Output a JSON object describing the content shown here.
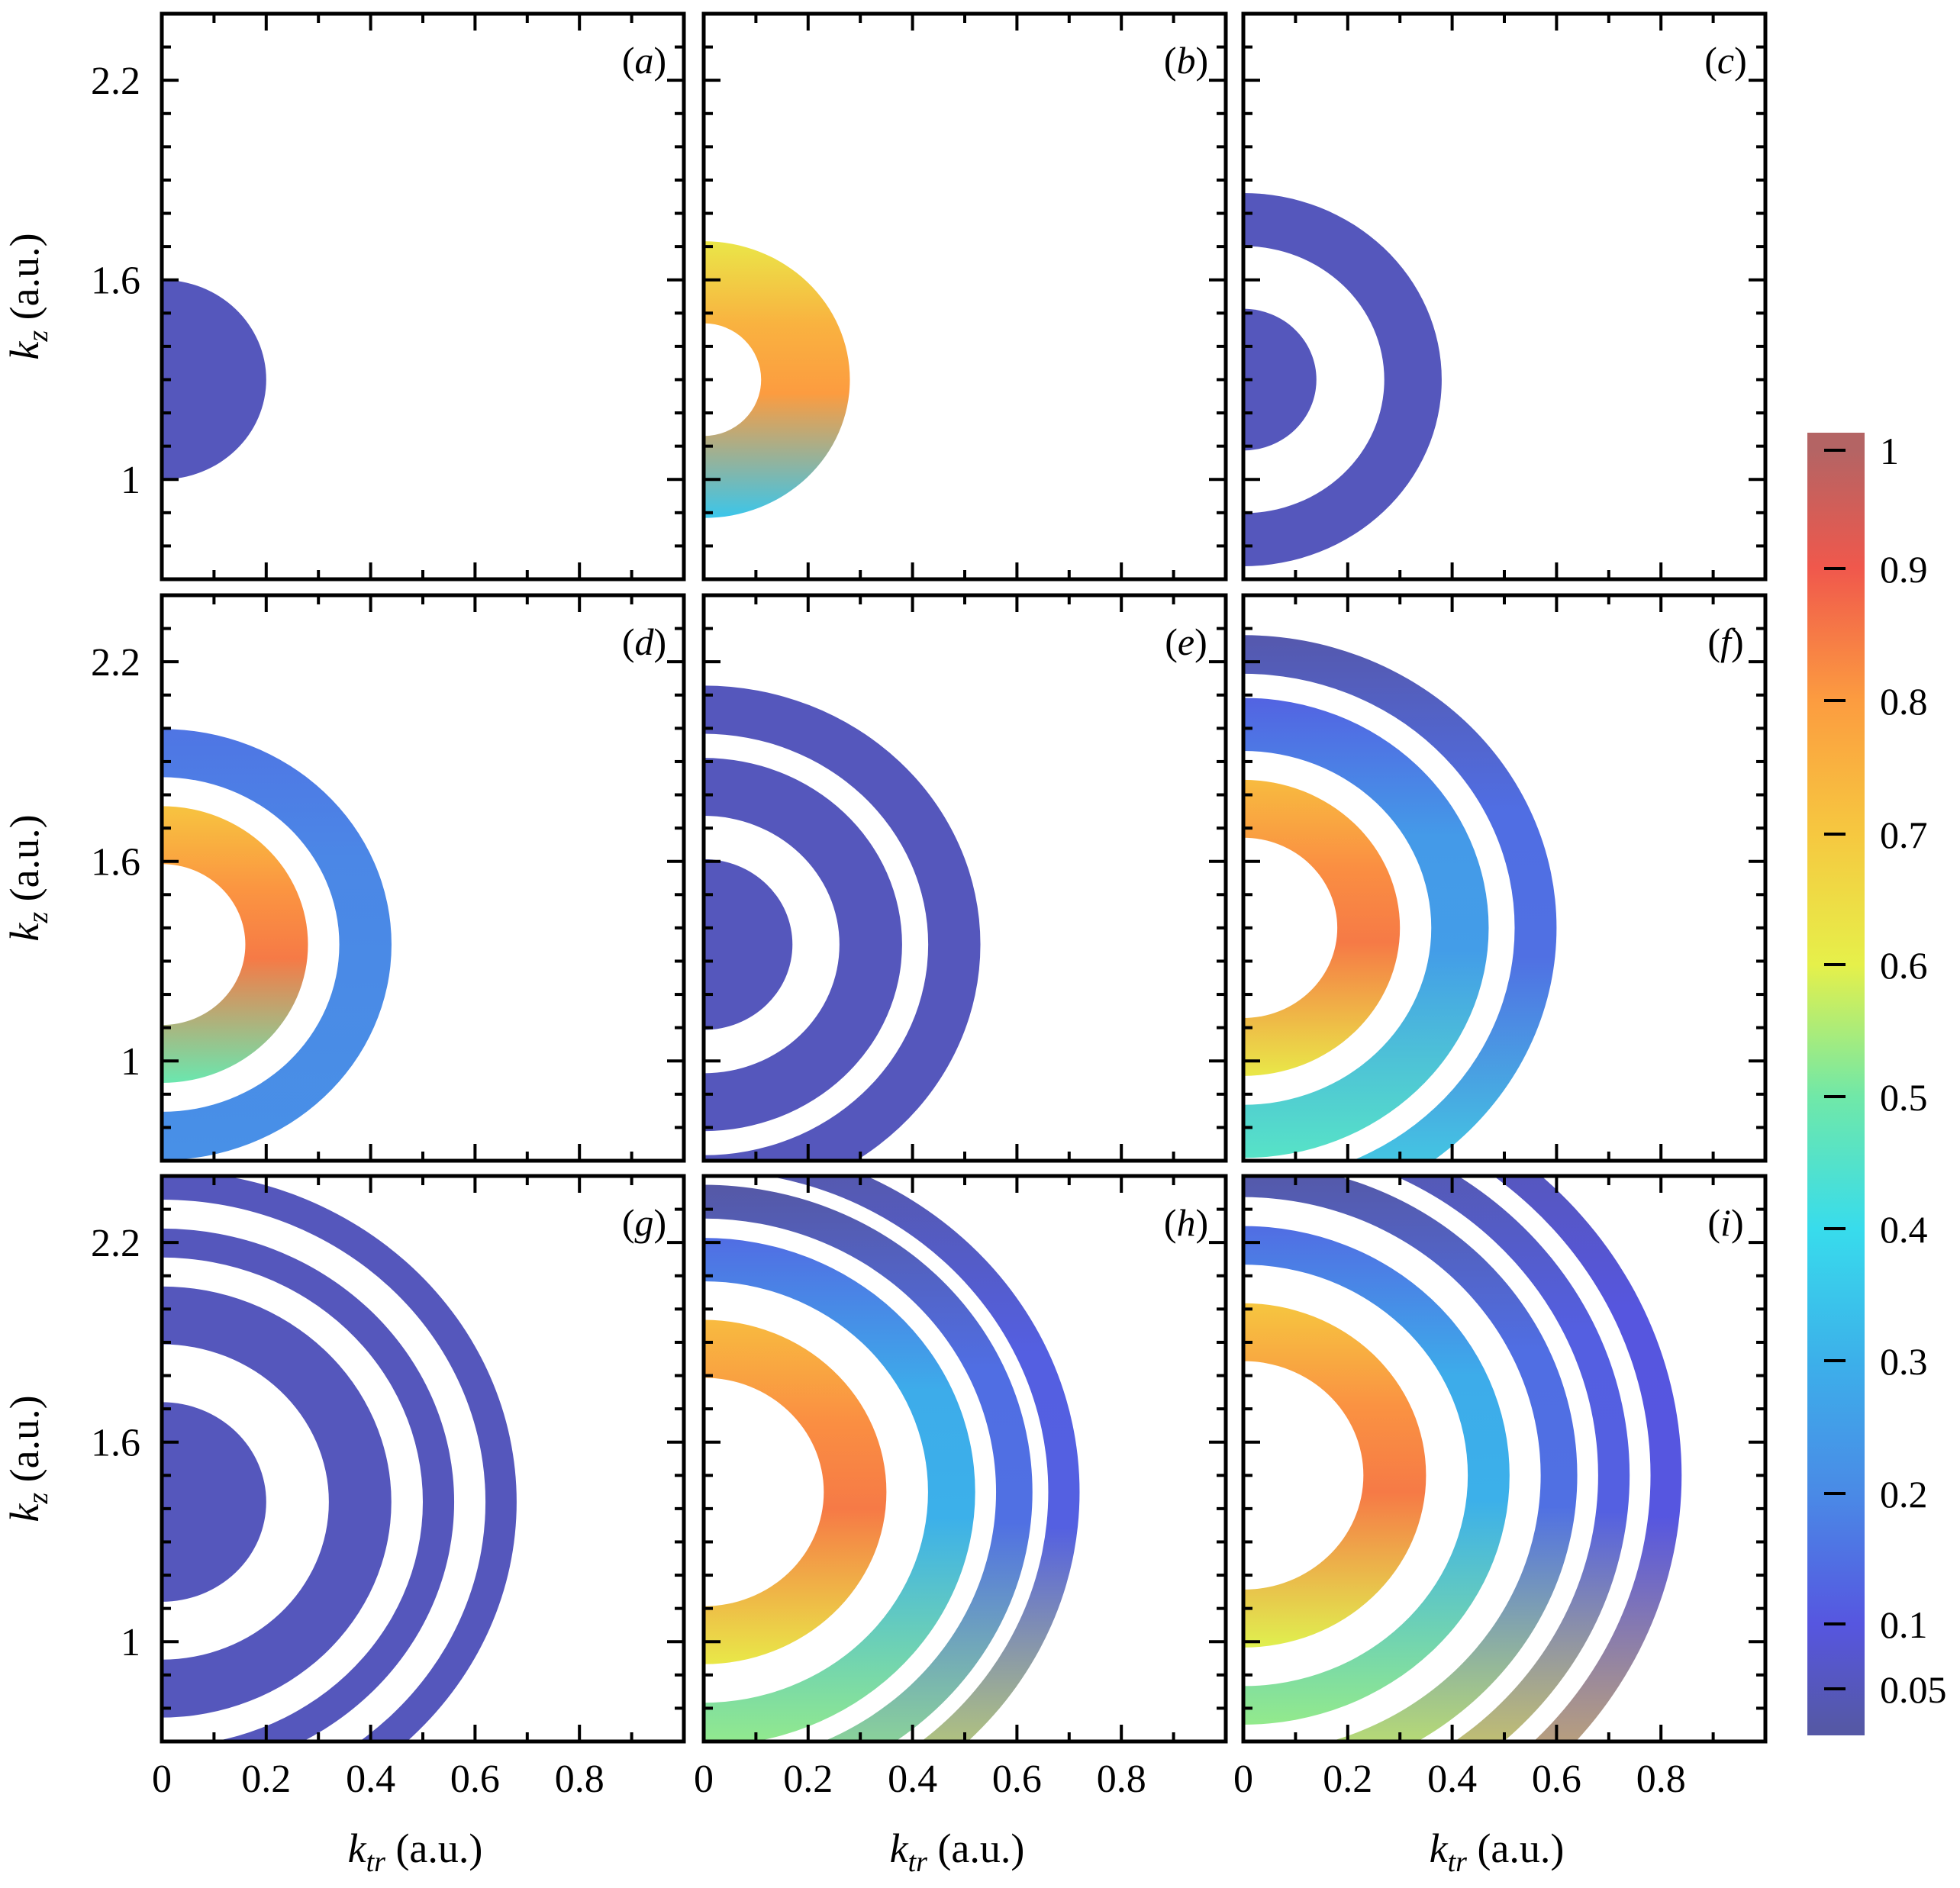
{
  "chart_data": {
    "type": "heatmap",
    "description_units": "rings are momentum-space density bands, color = normalized intensity",
    "xlabel": "k_tr (a.u.)",
    "xlabel_parts": {
      "sym": "k",
      "sub": "tr",
      "unit": " (a.u.)"
    },
    "ylabel": "k_z (a.u.)",
    "ylabel_parts": {
      "sym": "k",
      "sub": "z",
      "unit": " (a.u.)"
    },
    "xlim": [
      0,
      1.0
    ],
    "ylim": [
      0.7,
      2.4
    ],
    "xticks_major": [
      0,
      0.2,
      0.4,
      0.6,
      0.8
    ],
    "xtick_labels": [
      "0",
      "0.2",
      "0.4",
      "0.6",
      "0.8"
    ],
    "xticks_minor": [
      0.1,
      0.3,
      0.5,
      0.7,
      0.9
    ],
    "yticks_major": [
      1.0,
      1.6,
      2.2
    ],
    "ytick_labels": [
      "1",
      "1.6",
      "2.2"
    ],
    "yticks_minor": [
      0.8,
      0.9,
      1.1,
      1.2,
      1.3,
      1.4,
      1.5,
      1.7,
      1.8,
      1.9,
      2.0,
      2.1,
      2.3
    ],
    "colorbar": {
      "range": [
        0.02,
        1.0
      ],
      "ticks": [
        1,
        0.9,
        0.8,
        0.7,
        0.6,
        0.5,
        0.4,
        0.3,
        0.2,
        0.1,
        0.05
      ],
      "tick_labels": [
        "1",
        "0.9",
        "0.8",
        "0.7",
        "0.6",
        "0.5",
        "0.4",
        "0.3",
        "0.2",
        "0.1",
        "0.05"
      ],
      "stops": [
        {
          "v": 0.02,
          "color": "#5558a6"
        },
        {
          "v": 0.1,
          "color": "#5656e0"
        },
        {
          "v": 0.2,
          "color": "#4a8ae6"
        },
        {
          "v": 0.3,
          "color": "#3cb0ea"
        },
        {
          "v": 0.4,
          "color": "#38dcec"
        },
        {
          "v": 0.5,
          "color": "#70e8a8"
        },
        {
          "v": 0.6,
          "color": "#e6f04a"
        },
        {
          "v": 0.7,
          "color": "#f6c840"
        },
        {
          "v": 0.8,
          "color": "#fc9c40"
        },
        {
          "v": 0.9,
          "color": "#f0584c"
        },
        {
          "v": 1.0,
          "color": "#b46464"
        }
      ]
    },
    "panels": [
      {
        "label": "a",
        "kz_center": 1.3,
        "rings": [
          {
            "ri": 0.0,
            "ro": 0.2,
            "width": 0.0,
            "vi": 0.05,
            "vo": 0.05,
            "vb": 0.0
          }
        ]
      },
      {
        "label": "b",
        "kz_center": 1.3,
        "rings": [
          {
            "ri": 0.11,
            "ro": 0.28,
            "width": 0.0,
            "vi": 0.8,
            "vo": 0.3,
            "vb": -0.25
          }
        ]
      },
      {
        "label": "c",
        "kz_center": 1.3,
        "rings": [
          {
            "ri": 0.0,
            "ro": 0.14,
            "width": 0.0,
            "vi": 0.05,
            "vo": 0.05,
            "vb": 0.0
          },
          {
            "ri": 0.27,
            "ro": 0.38,
            "width": 0.0,
            "vi": 0.05,
            "vo": 0.05,
            "vb": 0.0
          }
        ]
      },
      {
        "label": "d",
        "kz_center": 1.35,
        "rings": [
          {
            "ri": 0.16,
            "ro": 0.28,
            "width": 0.0,
            "vi": 0.85,
            "vo": 0.45,
            "vb": -0.2
          },
          {
            "ri": 0.34,
            "ro": 0.44,
            "width": 0.0,
            "vi": 0.2,
            "vo": 0.15,
            "vb": 0.05
          }
        ]
      },
      {
        "label": "e",
        "kz_center": 1.35,
        "rings": [
          {
            "ri": 0.0,
            "ro": 0.17,
            "width": 0.0,
            "vi": 0.05,
            "vo": 0.05,
            "vb": 0.0
          },
          {
            "ri": 0.26,
            "ro": 0.38,
            "width": 0.0,
            "vi": 0.05,
            "vo": 0.05,
            "vb": 0.0
          },
          {
            "ri": 0.43,
            "ro": 0.53,
            "width": 0.0,
            "vi": 0.05,
            "vo": 0.05,
            "vb": 0.0
          }
        ]
      },
      {
        "label": "f",
        "kz_center": 1.4,
        "rings": [
          {
            "ri": 0.18,
            "ro": 0.3,
            "width": 0.0,
            "vi": 0.85,
            "vo": 0.55,
            "vb": -0.1
          },
          {
            "ri": 0.36,
            "ro": 0.47,
            "width": 0.0,
            "vi": 0.25,
            "vo": 0.18,
            "vb": 0.3
          },
          {
            "ri": 0.52,
            "ro": 0.6,
            "width": 0.0,
            "vi": 0.15,
            "vo": 0.12,
            "vb": 0.35
          }
        ]
      },
      {
        "label": "g",
        "kz_center": 1.42,
        "rings": [
          {
            "ri": 0.0,
            "ro": 0.2,
            "width": 0.0,
            "vi": 0.05,
            "vo": 0.05,
            "vb": 0.0
          },
          {
            "ri": 0.32,
            "ro": 0.44,
            "width": 0.0,
            "vi": 0.05,
            "vo": 0.05,
            "vb": 0.0
          },
          {
            "ri": 0.5,
            "ro": 0.56,
            "width": 0.0,
            "vi": 0.05,
            "vo": 0.05,
            "vb": 0.0
          },
          {
            "ri": 0.62,
            "ro": 0.68,
            "width": 0.0,
            "vi": 0.05,
            "vo": 0.05,
            "vb": 0.0
          }
        ]
      },
      {
        "label": "h",
        "kz_center": 1.45,
        "rings": [
          {
            "ri": 0.23,
            "ro": 0.35,
            "width": 0.0,
            "vi": 0.85,
            "vo": 0.55,
            "vb": -0.1
          },
          {
            "ri": 0.43,
            "ro": 0.52,
            "width": 0.0,
            "vi": 0.3,
            "vo": 0.2,
            "vb": 0.35
          },
          {
            "ri": 0.56,
            "ro": 0.63,
            "width": 0.0,
            "vi": 0.15,
            "vo": 0.12,
            "vb": 0.5
          },
          {
            "ri": 0.66,
            "ro": 0.72,
            "width": 0.0,
            "vi": 0.12,
            "vo": 0.1,
            "vb": 0.6
          }
        ]
      },
      {
        "label": "i",
        "kz_center": 1.5,
        "rings": [
          {
            "ri": 0.23,
            "ro": 0.35,
            "width": 0.0,
            "vi": 0.85,
            "vo": 0.5,
            "vb": -0.1
          },
          {
            "ri": 0.43,
            "ro": 0.51,
            "width": 0.0,
            "vi": 0.3,
            "vo": 0.2,
            "vb": 0.35
          },
          {
            "ri": 0.57,
            "ro": 0.64,
            "width": 0.0,
            "vi": 0.15,
            "vo": 0.12,
            "vb": 0.55
          },
          {
            "ri": 0.68,
            "ro": 0.74,
            "width": 0.0,
            "vi": 0.12,
            "vo": 0.1,
            "vb": 0.65
          },
          {
            "ri": 0.78,
            "ro": 0.84,
            "width": 0.0,
            "vi": 0.1,
            "vo": 0.08,
            "vb": 0.75
          }
        ]
      }
    ]
  }
}
